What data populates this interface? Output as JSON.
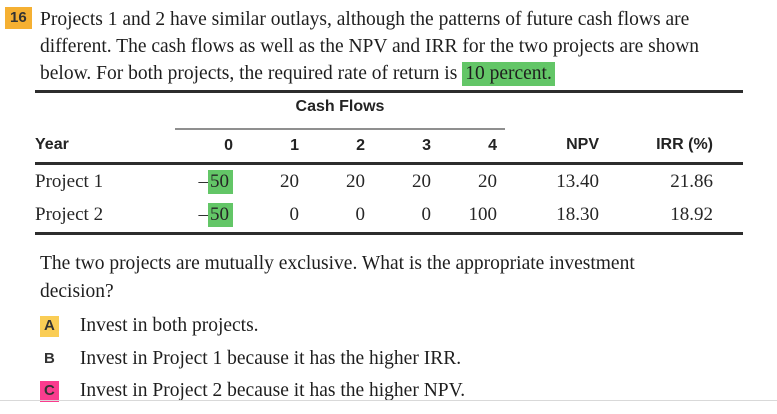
{
  "question": {
    "number": "16",
    "intro": "Projects 1 and 2 have similar outlays, although the patterns of future cash flows are different. The cash flows as well as the NPV and IRR for the two projects are shown below. For both projects, the required rate of return is",
    "rate_highlight": "10 percent."
  },
  "table": {
    "group_header": "Cash Flows",
    "columns": [
      "Year",
      "0",
      "1",
      "2",
      "3",
      "4",
      "NPV",
      "IRR (%)"
    ],
    "rows": [
      {
        "label": "Project 1",
        "outflow_sign": "–",
        "outflow": "50",
        "values": [
          "20",
          "20",
          "20",
          "20"
        ],
        "npv": "13.40",
        "irr": "21.86"
      },
      {
        "label": "Project 2",
        "outflow_sign": "–",
        "outflow": "50",
        "values": [
          "0",
          "0",
          "0",
          "100"
        ],
        "npv": "18.30",
        "irr": "18.92"
      }
    ]
  },
  "followup_question": "The two projects are mutually exclusive. What is the appropriate investment decision?",
  "choices": [
    {
      "letter": "A",
      "text": "Invest in both projects.",
      "badge_color": "#FACD55"
    },
    {
      "letter": "B",
      "text": "Invest in Project 1 because it has the higher IRR."
    },
    {
      "letter": "C",
      "text": "Invest in Project 2 because it has the higher NPV.",
      "badge_color": "#FA3C8E"
    }
  ],
  "colors": {
    "question_badge": "#F5B032",
    "green_highlight": "#63C667",
    "choice_a_badge": "#FACD55",
    "choice_c_badge": "#FA3C8E",
    "table_rule": "#2d2d2d",
    "group_underline": "#8f8f8f"
  }
}
